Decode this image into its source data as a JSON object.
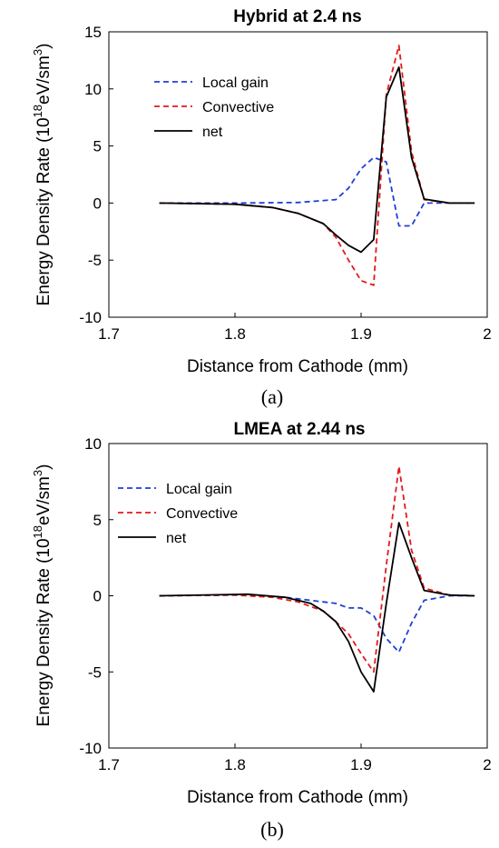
{
  "chart_data": [
    {
      "type": "line",
      "title": "Hybrid at 2.4 ns",
      "xlabel": "Distance from Cathode (mm)",
      "ylabel": {
        "prefix": "Energy Density Rate (10",
        "exp": "18",
        "mid": "eV/sm",
        "exp2": "3",
        "suffix": ")"
      },
      "xlim": [
        1.7,
        2.0
      ],
      "ylim": [
        -10,
        15
      ],
      "xticks": [
        "1.7",
        "1.8",
        "1.9",
        "2"
      ],
      "yticks": [
        "-10",
        "-5",
        "0",
        "5",
        "10",
        "15"
      ],
      "legend": "top-left",
      "grid": false,
      "panel_label": "(a)",
      "series": [
        {
          "name": "Local gain",
          "color": "#1f3fd6",
          "dash": "dashed",
          "x": [
            1.74,
            1.8,
            1.85,
            1.88,
            1.89,
            1.9,
            1.91,
            1.92,
            1.93,
            1.94,
            1.95,
            1.97,
            1.99
          ],
          "y": [
            0,
            0,
            0.05,
            0.3,
            1.3,
            3.0,
            4.0,
            3.6,
            -2.0,
            -2.0,
            0.0,
            0.0,
            0.0
          ]
        },
        {
          "name": "Convective",
          "color": "#e31a1c",
          "dash": "dashed",
          "x": [
            1.74,
            1.8,
            1.83,
            1.85,
            1.87,
            1.88,
            1.89,
            1.9,
            1.91,
            1.92,
            1.93,
            1.94,
            1.95,
            1.97,
            1.99
          ],
          "y": [
            0,
            -0.1,
            -0.4,
            -0.9,
            -1.8,
            -3.0,
            -5.0,
            -6.8,
            -7.2,
            9.5,
            13.8,
            4.5,
            0.3,
            0.0,
            0.0
          ]
        },
        {
          "name": "net",
          "color": "#000000",
          "dash": "solid",
          "x": [
            1.74,
            1.8,
            1.83,
            1.85,
            1.87,
            1.88,
            1.89,
            1.9,
            1.91,
            1.92,
            1.93,
            1.94,
            1.95,
            1.97,
            1.99
          ],
          "y": [
            0,
            -0.1,
            -0.4,
            -0.9,
            -1.8,
            -2.8,
            -3.7,
            -4.3,
            -3.2,
            9.3,
            11.9,
            4.0,
            0.35,
            0.0,
            0.0
          ]
        }
      ]
    },
    {
      "type": "line",
      "title": "LMEA at 2.44 ns",
      "xlabel": "Distance from Cathode (mm)",
      "ylabel": {
        "prefix": "Energy Density Rate (10",
        "exp": "18",
        "mid": "eV/sm",
        "exp2": "3",
        "suffix": ")"
      },
      "xlim": [
        1.7,
        2.0
      ],
      "ylim": [
        -10,
        10
      ],
      "xticks": [
        "1.7",
        "1.8",
        "1.9",
        "2"
      ],
      "yticks": [
        "-10",
        "-5",
        "0",
        "5",
        "10"
      ],
      "legend": "top-left",
      "grid": false,
      "panel_label": "(b)",
      "series": [
        {
          "name": "Local gain",
          "color": "#1f3fd6",
          "dash": "dashed",
          "x": [
            1.74,
            1.8,
            1.84,
            1.86,
            1.88,
            1.89,
            1.9,
            1.91,
            1.92,
            1.93,
            1.94,
            1.95,
            1.97,
            1.99
          ],
          "y": [
            0,
            0.05,
            -0.1,
            -0.3,
            -0.5,
            -0.8,
            -0.8,
            -1.3,
            -2.8,
            -3.7,
            -1.8,
            -0.3,
            0.0,
            0.0
          ]
        },
        {
          "name": "Convective",
          "color": "#e31a1c",
          "dash": "dashed",
          "x": [
            1.74,
            1.8,
            1.83,
            1.85,
            1.87,
            1.88,
            1.89,
            1.9,
            1.91,
            1.92,
            1.93,
            1.94,
            1.95,
            1.97,
            1.99
          ],
          "y": [
            0,
            0.05,
            -0.1,
            -0.4,
            -1.0,
            -1.7,
            -2.5,
            -3.8,
            -5.0,
            2.0,
            8.5,
            3.0,
            0.5,
            0.05,
            0.0
          ]
        },
        {
          "name": "net",
          "color": "#000000",
          "dash": "solid",
          "x": [
            1.74,
            1.81,
            1.84,
            1.86,
            1.87,
            1.88,
            1.89,
            1.9,
            1.91,
            1.92,
            1.93,
            1.94,
            1.95,
            1.97,
            1.99
          ],
          "y": [
            0,
            0.1,
            -0.1,
            -0.5,
            -1.0,
            -1.7,
            -3.0,
            -5.0,
            -6.3,
            -0.5,
            4.8,
            2.5,
            0.35,
            0.05,
            0.0
          ]
        }
      ]
    }
  ]
}
